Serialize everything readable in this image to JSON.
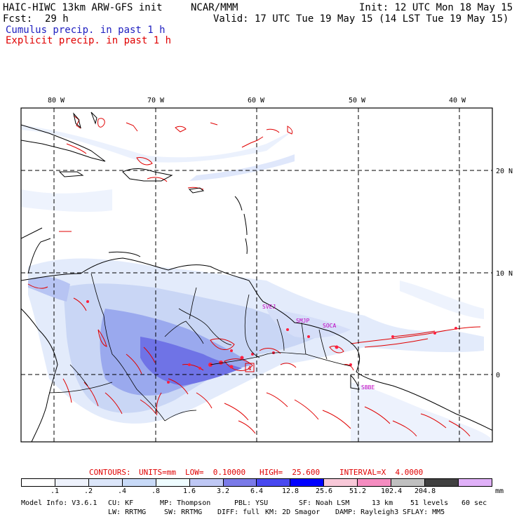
{
  "header": {
    "model": "HAIC-HIWC 13km ARW-GFS init",
    "org": "NCAR/MMM",
    "init": "Init: 12 UTC Mon 18 May 15",
    "fcst_label": "Fcst:",
    "fcst_value": "29 h",
    "valid": "Valid: 17 UTC Tue 19 May 15 (14 LST Tue 19 May 15)",
    "cumulus_legend": "Cumulus precip. in past 1 h",
    "explicit_legend": "Explicit precip. in past 1 h"
  },
  "map": {
    "lon_labels": [
      "80 W",
      "70 W",
      "60 W",
      "50 W",
      "40 W"
    ],
    "lat_labels": [
      "20 N",
      "10 N",
      "0"
    ],
    "place_labels": [
      "SVEJ",
      "SMJP",
      "SOCA",
      "SBBE"
    ],
    "marker": "4"
  },
  "contours": {
    "label": "CONTOURS:",
    "units": "UNITS=mm",
    "low": "LOW=  0.10000",
    "high": "HIGH=  25.600",
    "interval": "INTERVAL=X  4.0000"
  },
  "colorbar": {
    "labels": [
      ".1",
      ".2",
      ".4",
      ".8",
      "1.6",
      "3.2",
      "6.4",
      "12.8",
      "25.6",
      "51.2",
      "102.4",
      "204.8"
    ],
    "colors": [
      "#ffffff",
      "#eef2fc",
      "#dce6fa",
      "#c8daf8",
      "#eefcff",
      "#bfc8f5",
      "#7a7ae8",
      "#4848f0",
      "#0000ff",
      "#f8c8d8",
      "#f58cc0",
      "#c0c0c0",
      "#404040",
      "#e0b0f8"
    ],
    "units": "mm"
  },
  "footer": {
    "line1": [
      "Model Info: V3.6.1",
      "CU: KF",
      "MP: Thompson",
      "PBL: YSU",
      "SF: Noah LSM",
      "13 km",
      "51 levels",
      "60 sec"
    ],
    "line2": [
      "LW: RRTMG",
      "SW: RRTMG",
      "DIFF: full",
      "KM: 2D Smagor",
      "DAMP: Rayleigh3",
      "SFLAY: MM5"
    ]
  }
}
